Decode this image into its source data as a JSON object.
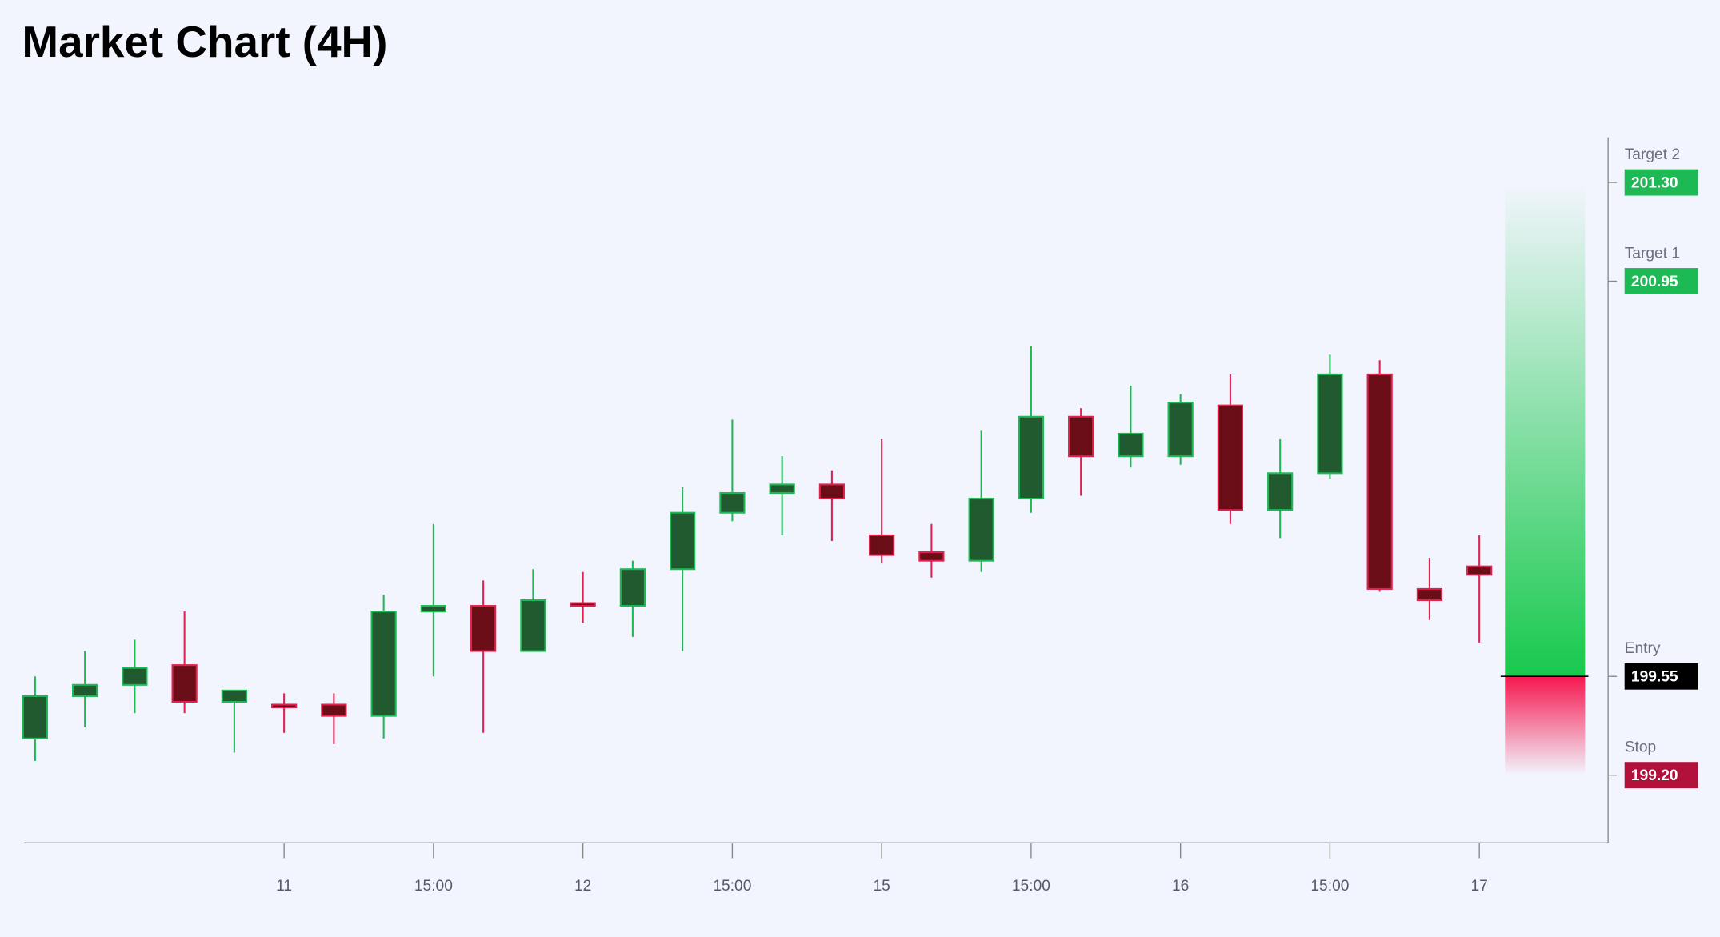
{
  "chart_data": {
    "type": "candlestick",
    "title": "Market Chart (4H)",
    "categories": [
      null,
      null,
      null,
      null,
      null,
      "11",
      null,
      null,
      "15:00",
      null,
      null,
      "12",
      null,
      null,
      "15:00",
      null,
      null,
      "15",
      null,
      null,
      "15:00",
      null,
      null,
      "16",
      null,
      null,
      "15:00",
      null,
      null,
      "17"
    ],
    "open": [
      199.33,
      199.48,
      199.52,
      199.59,
      199.46,
      199.45,
      199.45,
      199.41,
      199.78,
      199.8,
      199.64,
      199.81,
      199.8,
      199.93,
      200.13,
      200.2,
      200.23,
      200.05,
      199.99,
      199.96,
      200.18,
      200.47,
      200.33,
      200.33,
      200.51,
      200.14,
      200.27,
      200.62,
      199.86,
      199.94
    ],
    "high": [
      199.55,
      199.64,
      199.68,
      199.78,
      199.5,
      199.49,
      199.49,
      199.84,
      200.09,
      199.89,
      199.93,
      199.92,
      199.96,
      200.22,
      200.46,
      200.33,
      200.28,
      200.39,
      200.09,
      200.42,
      200.72,
      200.5,
      200.58,
      200.55,
      200.62,
      200.39,
      200.69,
      200.67,
      199.97,
      200.05
    ],
    "low": [
      199.25,
      199.37,
      199.42,
      199.42,
      199.28,
      199.35,
      199.31,
      199.33,
      199.55,
      199.35,
      199.64,
      199.74,
      199.69,
      199.64,
      200.1,
      200.05,
      200.03,
      199.95,
      199.9,
      199.92,
      200.13,
      200.19,
      200.29,
      200.3,
      200.09,
      200.04,
      200.25,
      199.85,
      199.75,
      199.67
    ],
    "close": [
      199.48,
      199.52,
      199.58,
      199.46,
      199.5,
      199.44,
      199.41,
      199.78,
      199.8,
      199.64,
      199.82,
      199.8,
      199.93,
      200.13,
      200.2,
      200.23,
      200.18,
      199.98,
      199.96,
      200.18,
      200.47,
      200.33,
      200.41,
      200.52,
      200.14,
      200.27,
      200.62,
      199.86,
      199.82,
      199.91
    ],
    "up_color": "#1db954",
    "down_color": "#e0204d",
    "ylim": [
      198.96,
      201.46
    ],
    "levels": [
      {
        "name": "Target 2",
        "value": 201.3,
        "label": "201.30",
        "color": "#1db954"
      },
      {
        "name": "Target 1",
        "value": 200.95,
        "label": "200.95",
        "color": "#1db954"
      },
      {
        "name": "Entry",
        "value": 199.55,
        "label": "199.55",
        "color": "#000000"
      },
      {
        "name": "Stop",
        "value": 199.2,
        "label": "199.20",
        "color": "#b0103a"
      }
    ]
  }
}
